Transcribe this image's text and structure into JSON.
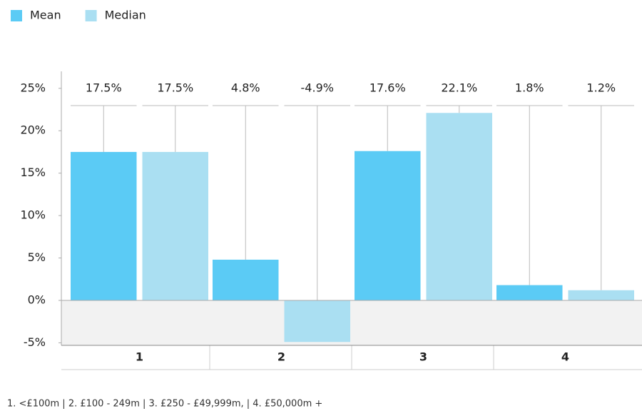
{
  "chart_data": {
    "type": "bar",
    "categories": [
      "1",
      "2",
      "3",
      "4"
    ],
    "series": [
      {
        "name": "Mean",
        "color": "#5bcbf5",
        "values": [
          17.5,
          4.8,
          17.6,
          1.8
        ],
        "value_labels": [
          "17.5%",
          "4.8%",
          "17.6%",
          "1.8%"
        ]
      },
      {
        "name": "Median",
        "color": "#aadff2",
        "values": [
          17.5,
          -4.9,
          22.1,
          1.2
        ],
        "value_labels": [
          "17.5%",
          "-4.9%",
          "22.1%",
          "1.2%"
        ]
      }
    ],
    "ylim": [
      -5.3,
      27
    ],
    "yticks": [
      {
        "value": -5,
        "label": "-5%"
      },
      {
        "value": 0,
        "label": "0%"
      },
      {
        "value": 5,
        "label": "5%"
      },
      {
        "value": 10,
        "label": "10%"
      },
      {
        "value": 15,
        "label": "15%"
      },
      {
        "value": 20,
        "label": "20%"
      },
      {
        "value": 25,
        "label": "25%"
      }
    ],
    "legend": "top-left",
    "footnote": "1. <£100m  |  2. £100 - 249m  |  3. £250 - £49,999m,  |  4. £50,000m +"
  }
}
